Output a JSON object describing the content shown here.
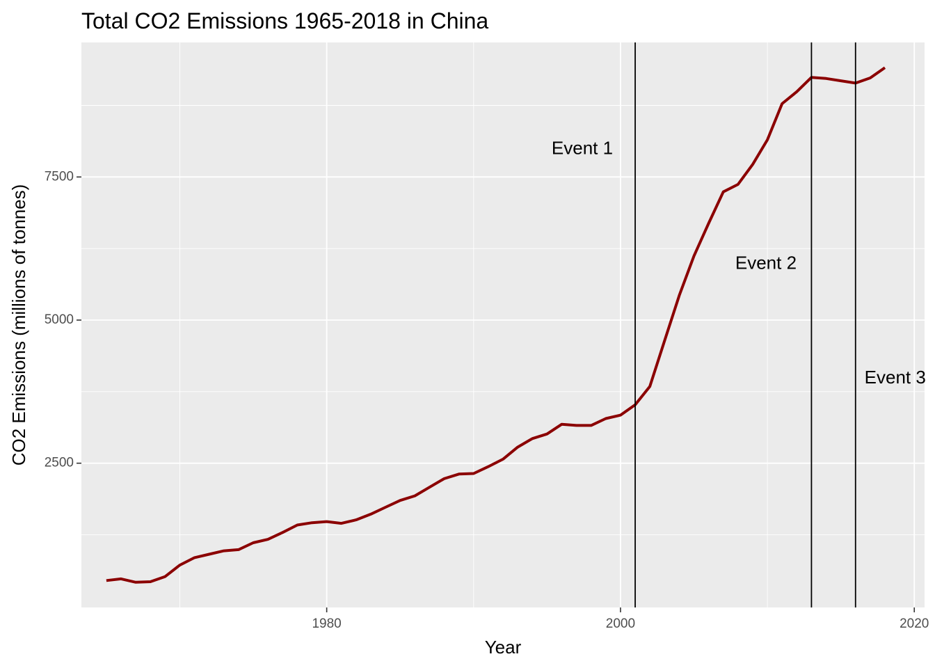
{
  "chart_data": {
    "type": "line",
    "title": "Total CO2 Emissions 1965-2018 in China",
    "xlabel": "Year",
    "ylabel": "CO2 Emissions (millions of tonnes)",
    "xlim": [
      1963.3,
      2020.7
    ],
    "ylim": [
      -20,
      9850
    ],
    "x_ticks": [
      1980,
      2000,
      2020
    ],
    "y_ticks": [
      2500,
      5000,
      7500
    ],
    "grid": true,
    "legend": "none",
    "colors": {
      "panel": "#ebebeb",
      "grid": "#ffffff",
      "line": "#8b0000",
      "vline": "#000000"
    },
    "series": [
      {
        "x": [
          1965,
          1966,
          1967,
          1968,
          1969,
          1970,
          1971,
          1972,
          1973,
          1974,
          1975,
          1976,
          1977,
          1978,
          1979,
          1980,
          1981,
          1982,
          1983,
          1984,
          1985,
          1986,
          1987,
          1988,
          1989,
          1990,
          1991,
          1992,
          1993,
          1994,
          1995,
          1996,
          1997,
          1998,
          1999,
          2000,
          2001,
          2002,
          2003,
          2004,
          2005,
          2006,
          2007,
          2008,
          2009,
          2010,
          2011,
          2012,
          2013,
          2014,
          2015,
          2016,
          2017,
          2018
        ],
        "values": [
          450,
          480,
          420,
          430,
          520,
          720,
          850,
          910,
          970,
          990,
          1110,
          1170,
          1290,
          1420,
          1460,
          1480,
          1450,
          1510,
          1610,
          1730,
          1850,
          1930,
          2080,
          2230,
          2310,
          2320,
          2440,
          2570,
          2780,
          2930,
          3010,
          3180,
          3160,
          3160,
          3280,
          3340,
          3520,
          3840,
          4640,
          5430,
          6120,
          6690,
          7240,
          7370,
          7720,
          8150,
          8780,
          8990,
          9240,
          9220,
          9180,
          9140,
          9230,
          9410
        ]
      }
    ],
    "vlines": [
      {
        "x": 2001,
        "label": "Event 1",
        "label_x": 1997.4,
        "label_y": 7980
      },
      {
        "x": 2013,
        "label": "Event 2",
        "label_x": 2009.9,
        "label_y": 5980
      },
      {
        "x": 2016,
        "label": "Event 3",
        "label_x": 2018.7,
        "label_y": 3980
      }
    ]
  }
}
